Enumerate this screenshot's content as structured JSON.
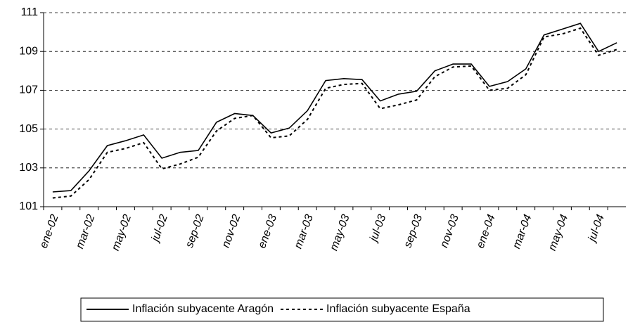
{
  "chart_data": {
    "type": "line",
    "categories": [
      "ene-02",
      null,
      "mar-02",
      null,
      "may-02",
      null,
      "jul-02",
      null,
      "sep-02",
      null,
      "nov-02",
      null,
      "ene-03",
      null,
      "mar-03",
      null,
      "may-03",
      null,
      "jul-03",
      null,
      "sep-03",
      null,
      "nov-03",
      null,
      "ene-04",
      null,
      "mar-04",
      null,
      "may-04",
      null,
      "jul-04",
      null
    ],
    "series": [
      {
        "name": "Inflación subyacente Aragón",
        "color": "#000000",
        "dash": "solid",
        "values": [
          101.76,
          101.83,
          102.85,
          104.15,
          104.4,
          104.7,
          103.5,
          103.8,
          103.9,
          105.35,
          105.8,
          105.7,
          104.8,
          105.05,
          105.95,
          107.5,
          107.6,
          107.55,
          106.45,
          106.8,
          106.95,
          108.0,
          108.35,
          108.35,
          107.2,
          107.45,
          108.1,
          109.85,
          110.15,
          110.45,
          109.0,
          109.45
        ]
      },
      {
        "name": "Inflación subyacente España",
        "color": "#000000",
        "dash": "dashed",
        "values": [
          101.45,
          101.55,
          102.4,
          103.8,
          104.0,
          104.3,
          102.95,
          103.2,
          103.55,
          104.9,
          105.55,
          105.7,
          104.55,
          104.65,
          105.5,
          107.1,
          107.3,
          107.35,
          106.05,
          106.25,
          106.5,
          107.7,
          108.2,
          108.25,
          107.0,
          107.1,
          107.8,
          109.75,
          109.9,
          110.2,
          108.8,
          109.1
        ]
      }
    ],
    "ylim": [
      101,
      111
    ],
    "yticks": [
      101,
      103,
      105,
      107,
      109,
      111
    ],
    "grid": true,
    "legend": "bottom"
  }
}
